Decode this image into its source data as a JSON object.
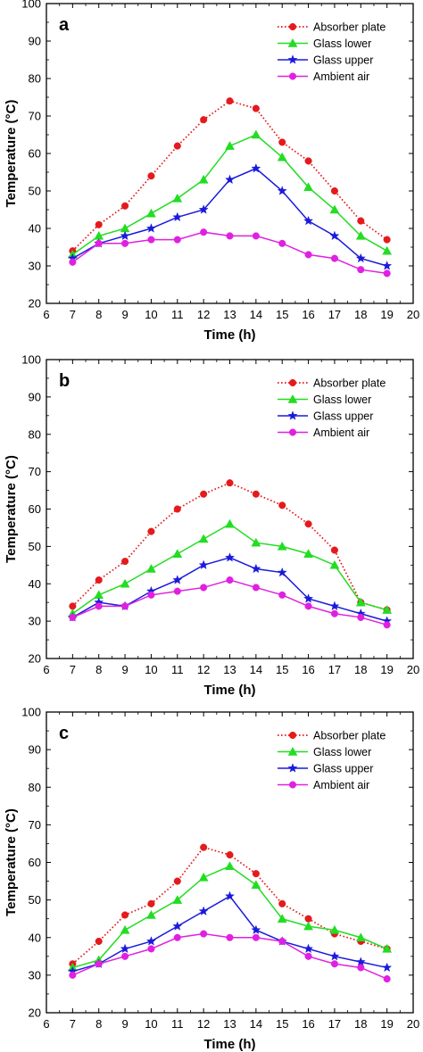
{
  "chart_data": [
    {
      "type": "line",
      "panel_label": "a",
      "xlabel": "Time (h)",
      "ylabel": "Temperature (°C)",
      "xlim": [
        6,
        20
      ],
      "ylim": [
        20,
        100
      ],
      "x_tick_labels": [
        "6",
        "7",
        "8",
        "9",
        "10",
        "11",
        "12",
        "13",
        "14",
        "15",
        "16",
        "17",
        "18",
        "19",
        "20"
      ],
      "y_tick_labels": [
        "20",
        "30",
        "40",
        "50",
        "60",
        "70",
        "80",
        "90",
        "100"
      ],
      "legend_position": "top-right",
      "x": [
        7,
        8,
        9,
        10,
        11,
        12,
        13,
        14,
        15,
        16,
        17,
        18,
        19
      ],
      "series": [
        {
          "name": "Absorber plate",
          "color": "#e41a1c",
          "marker": "circle",
          "line": "dotted",
          "values": [
            34,
            41,
            46,
            54,
            62,
            69,
            74,
            72,
            63,
            58,
            50,
            42,
            37
          ]
        },
        {
          "name": "Glass lower",
          "color": "#22dd22",
          "marker": "triangle",
          "line": "solid",
          "values": [
            33,
            38,
            40,
            44,
            48,
            53,
            62,
            65,
            59,
            51,
            45,
            38,
            34
          ]
        },
        {
          "name": "Glass upper",
          "color": "#1a1adc",
          "marker": "star",
          "line": "solid",
          "values": [
            32,
            36,
            38,
            40,
            43,
            45,
            53,
            56,
            50,
            42,
            38,
            32,
            30
          ]
        },
        {
          "name": "Ambient air",
          "color": "#e020e0",
          "marker": "circle",
          "line": "solid",
          "values": [
            31,
            36,
            36,
            37,
            37,
            39,
            38,
            38,
            36,
            33,
            32,
            29,
            28
          ]
        }
      ]
    },
    {
      "type": "line",
      "panel_label": "b",
      "xlabel": "Time (h)",
      "ylabel": "Temperature (°C)",
      "xlim": [
        6,
        20
      ],
      "ylim": [
        20,
        100
      ],
      "x_tick_labels": [
        "6",
        "7",
        "8",
        "9",
        "10",
        "11",
        "12",
        "13",
        "14",
        "15",
        "16",
        "17",
        "18",
        "19",
        "20"
      ],
      "y_tick_labels": [
        "20",
        "30",
        "40",
        "50",
        "60",
        "70",
        "80",
        "90",
        "100"
      ],
      "legend_position": "top-right",
      "x": [
        7,
        8,
        9,
        10,
        11,
        12,
        13,
        14,
        15,
        16,
        17,
        18,
        19
      ],
      "series": [
        {
          "name": "Absorber plate",
          "color": "#e41a1c",
          "marker": "circle",
          "line": "dotted",
          "values": [
            34,
            41,
            46,
            54,
            60,
            64,
            67,
            64,
            61,
            56,
            49,
            35,
            33
          ]
        },
        {
          "name": "Glass lower",
          "color": "#22dd22",
          "marker": "triangle",
          "line": "solid",
          "values": [
            32,
            37,
            40,
            44,
            48,
            52,
            56,
            51,
            50,
            48,
            45,
            35,
            33
          ]
        },
        {
          "name": "Glass upper",
          "color": "#1a1adc",
          "marker": "star",
          "line": "solid",
          "values": [
            31,
            35,
            34,
            38,
            41,
            45,
            47,
            44,
            43,
            36,
            34,
            32,
            30
          ]
        },
        {
          "name": "Ambient air",
          "color": "#e020e0",
          "marker": "circle",
          "line": "solid",
          "values": [
            31,
            34,
            34,
            37,
            38,
            39,
            41,
            39,
            37,
            34,
            32,
            31,
            29
          ]
        }
      ]
    },
    {
      "type": "line",
      "panel_label": "c",
      "xlabel": "Time (h)",
      "ylabel": "Temperature (°C)",
      "xlim": [
        6,
        20
      ],
      "ylim": [
        20,
        100
      ],
      "x_tick_labels": [
        "6",
        "7",
        "8",
        "9",
        "10",
        "11",
        "12",
        "13",
        "14",
        "15",
        "16",
        "17",
        "18",
        "19",
        "20"
      ],
      "y_tick_labels": [
        "20",
        "30",
        "40",
        "50",
        "60",
        "70",
        "80",
        "90",
        "100"
      ],
      "legend_position": "top-right",
      "x": [
        7,
        8,
        9,
        10,
        11,
        12,
        13,
        14,
        15,
        16,
        17,
        18,
        19
      ],
      "series": [
        {
          "name": "Absorber plate",
          "color": "#e41a1c",
          "marker": "circle",
          "line": "dotted",
          "values": [
            33,
            39,
            46,
            49,
            55,
            64,
            62,
            57,
            49,
            45,
            41,
            39,
            37
          ]
        },
        {
          "name": "Glass lower",
          "color": "#22dd22",
          "marker": "triangle",
          "line": "solid",
          "values": [
            32,
            34,
            42,
            46,
            50,
            56,
            59,
            54,
            45,
            43,
            42,
            40,
            37
          ]
        },
        {
          "name": "Glass upper",
          "color": "#1a1adc",
          "marker": "star",
          "line": "solid",
          "values": [
            31,
            33,
            37,
            39,
            43,
            47,
            51,
            42,
            39,
            37,
            35,
            33.5,
            32
          ]
        },
        {
          "name": "Ambient air",
          "color": "#e020e0",
          "marker": "circle",
          "line": "solid",
          "values": [
            30,
            33,
            35,
            37,
            40,
            41,
            40,
            40,
            39,
            35,
            33,
            32,
            29
          ]
        }
      ]
    }
  ]
}
